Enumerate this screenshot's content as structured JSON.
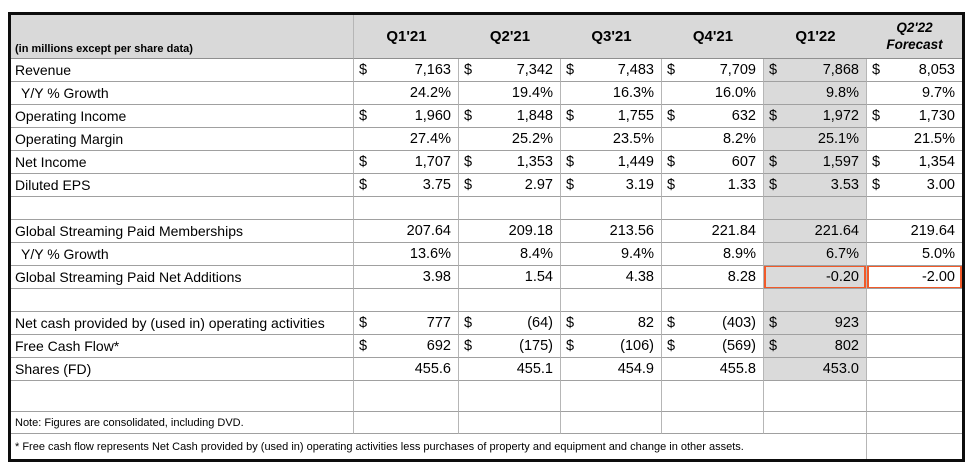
{
  "colors": {
    "header_gray": "#d9d9d9",
    "column_gray": "#dadada",
    "highlight_orange": "#f15a29"
  },
  "header": {
    "unit_note": "(in millions except per share data)",
    "quarters": [
      "Q1'21",
      "Q2'21",
      "Q3'21",
      "Q4'21",
      "Q1'22"
    ],
    "forecast_line1": "Q2'22",
    "forecast_line2": "Forecast"
  },
  "chart_data": {
    "type": "table",
    "title": "Quarterly financial summary",
    "columns": [
      "(in millions except per share data)",
      "Q1'21",
      "Q2'21",
      "Q3'21",
      "Q4'21",
      "Q1'22",
      "Q2'22 Forecast"
    ],
    "highlighted_column": "Q1'22",
    "rows": [
      {
        "label": "Revenue",
        "style": "currency",
        "indent": false,
        "values": [
          "7,163",
          "7,342",
          "7,483",
          "7,709",
          "7,868",
          "8,053"
        ]
      },
      {
        "label": "Y/Y % Growth",
        "style": "plain",
        "indent": true,
        "values": [
          "24.2%",
          "19.4%",
          "16.3%",
          "16.0%",
          "9.8%",
          "9.7%"
        ]
      },
      {
        "label": "Operating Income",
        "style": "currency",
        "indent": false,
        "values": [
          "1,960",
          "1,848",
          "1,755",
          "632",
          "1,972",
          "1,730"
        ]
      },
      {
        "label": "Operating Margin",
        "style": "plain",
        "indent": false,
        "values": [
          "27.4%",
          "25.2%",
          "23.5%",
          "8.2%",
          "25.1%",
          "21.5%"
        ]
      },
      {
        "label": "Net Income",
        "style": "currency",
        "indent": false,
        "values": [
          "1,707",
          "1,353",
          "1,449",
          "607",
          "1,597",
          "1,354"
        ]
      },
      {
        "label": "Diluted EPS",
        "style": "currency",
        "indent": false,
        "values": [
          "3.75",
          "2.97",
          "3.19",
          "1.33",
          "3.53",
          "3.00"
        ]
      },
      {
        "label": "",
        "style": "blank",
        "indent": false,
        "values": [
          "",
          "",
          "",
          "",
          "",
          ""
        ]
      },
      {
        "label": "Global Streaming Paid Memberships",
        "style": "plain",
        "indent": false,
        "values": [
          "207.64",
          "209.18",
          "213.56",
          "221.84",
          "221.64",
          "219.64"
        ]
      },
      {
        "label": "Y/Y % Growth",
        "style": "plain",
        "indent": true,
        "values": [
          "13.6%",
          "8.4%",
          "9.4%",
          "8.9%",
          "6.7%",
          "5.0%"
        ]
      },
      {
        "label": "Global Streaming Paid Net Additions",
        "style": "plain",
        "indent": false,
        "highlight_cols": [
          4,
          5
        ],
        "values": [
          "3.98",
          "1.54",
          "4.38",
          "8.28",
          "-0.20",
          "-2.00"
        ]
      },
      {
        "label": "",
        "style": "blank",
        "indent": false,
        "values": [
          "",
          "",
          "",
          "",
          "",
          ""
        ]
      },
      {
        "label": "Net cash provided by (used in) operating activities",
        "style": "currency",
        "indent": false,
        "values": [
          "777",
          "(64)",
          "82",
          "(403)",
          "923",
          ""
        ]
      },
      {
        "label": "Free Cash Flow*",
        "style": "currency",
        "indent": false,
        "values": [
          "692",
          "(175)",
          "(106)",
          "(569)",
          "802",
          ""
        ]
      },
      {
        "label": "Shares (FD)",
        "style": "plain",
        "indent": false,
        "values": [
          "455.6",
          "455.1",
          "454.9",
          "455.8",
          "453.0",
          ""
        ]
      }
    ]
  },
  "notes": {
    "note": "Note: Figures are consolidated, including DVD.",
    "footnote": "* Free cash flow represents Net Cash provided by (used in) operating activities less purchases of property and equipment and change in other assets."
  }
}
